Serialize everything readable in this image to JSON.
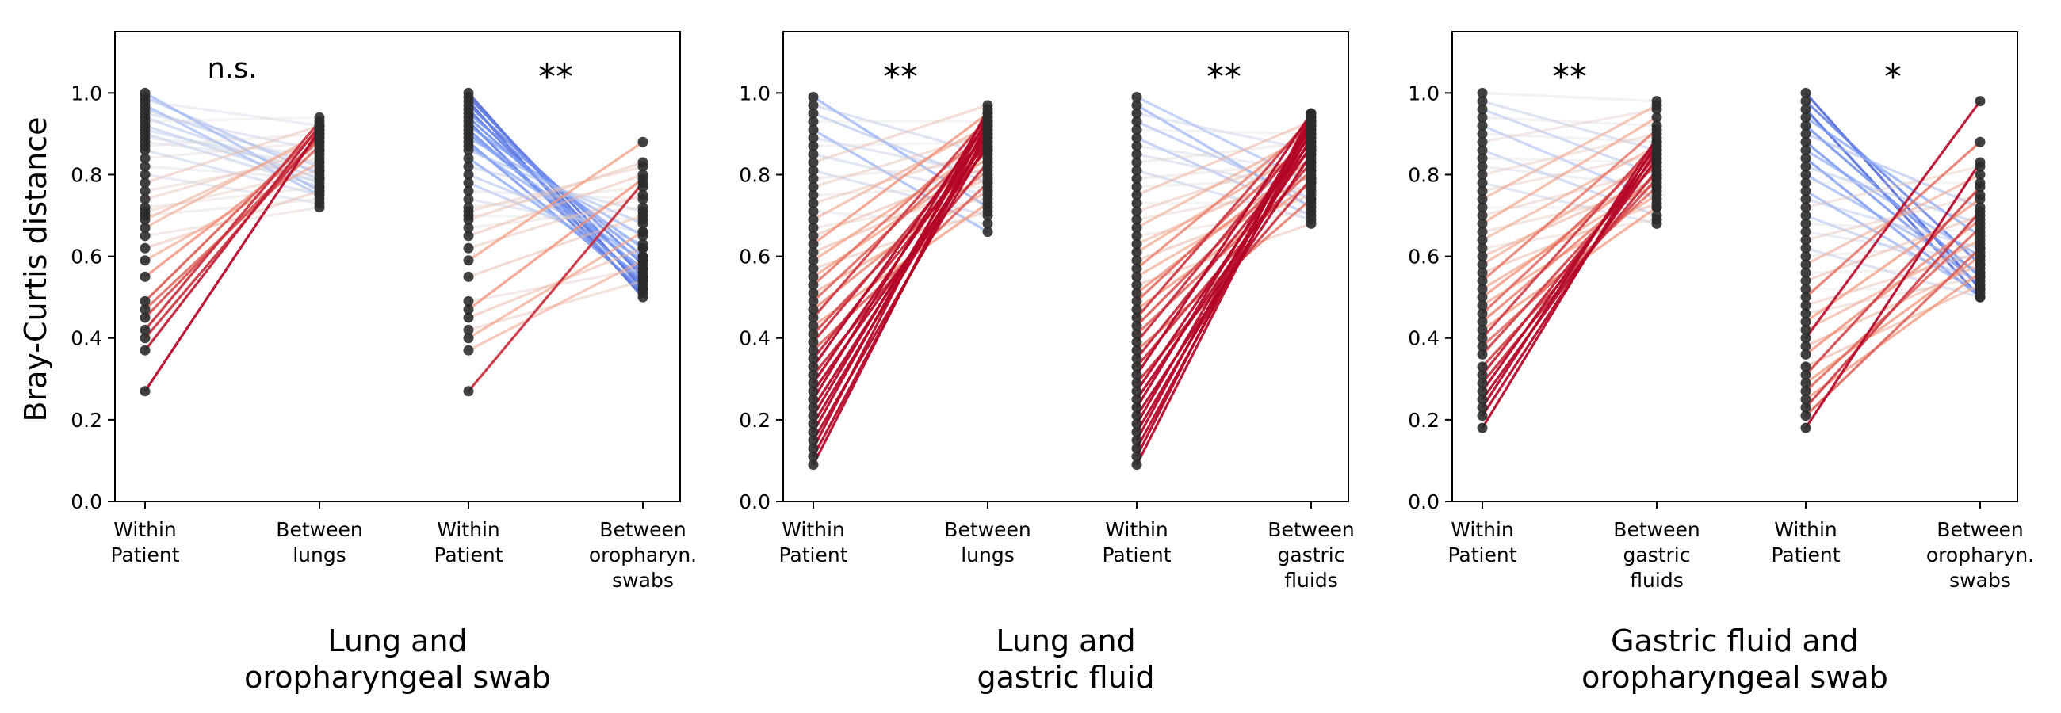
{
  "figure": {
    "ylabel": "Bray-Curtis distance"
  },
  "chart_data": [
    {
      "type": "line",
      "panel_label": "Lung and oropharyngeal swab",
      "title_lines": [
        "Lung and",
        "oropharyngeal swab"
      ],
      "ylim": [
        0.0,
        1.15
      ],
      "yticks": [
        0.0,
        0.2,
        0.4,
        0.6,
        0.8,
        1.0
      ],
      "ytick_labels": [
        "0.0",
        "0.2",
        "0.4",
        "0.6",
        "0.8",
        "1.0"
      ],
      "grid": false,
      "categories": [
        {
          "lines": [
            "Within",
            "Patient"
          ]
        },
        {
          "lines": [
            "Between",
            "lungs"
          ]
        },
        {
          "lines": [
            "Within",
            "Patient"
          ]
        },
        {
          "lines": [
            "Between",
            "oropharyn.",
            "swabs"
          ]
        }
      ],
      "comparisons": [
        {
          "significance": "n.s.",
          "within": [
            1.0,
            0.99,
            0.98,
            0.97,
            0.96,
            0.95,
            0.94,
            0.93,
            0.92,
            0.91,
            0.9,
            0.89,
            0.88,
            0.87,
            0.86,
            0.84,
            0.82,
            0.8,
            0.78,
            0.76,
            0.74,
            0.72,
            0.71,
            0.7,
            0.69,
            0.67,
            0.65,
            0.62,
            0.59,
            0.55,
            0.49,
            0.47,
            0.45,
            0.42,
            0.4,
            0.37,
            0.27
          ],
          "between": [
            0.76,
            0.8,
            0.92,
            0.75,
            0.82,
            0.86,
            0.79,
            0.94,
            0.78,
            0.81,
            0.77,
            0.85,
            0.83,
            0.9,
            0.75,
            0.88,
            0.79,
            0.73,
            0.92,
            0.84,
            0.86,
            0.77,
            0.81,
            0.74,
            0.89,
            0.9,
            0.72,
            0.76,
            0.83,
            0.88,
            0.91,
            0.87,
            0.89,
            0.93,
            0.9,
            0.92,
            0.91
          ]
        },
        {
          "significance": "**",
          "within": [
            1.0,
            0.99,
            0.98,
            0.97,
            0.96,
            0.95,
            0.94,
            0.93,
            0.92,
            0.91,
            0.9,
            0.89,
            0.88,
            0.87,
            0.86,
            0.84,
            0.82,
            0.8,
            0.78,
            0.76,
            0.74,
            0.72,
            0.71,
            0.7,
            0.69,
            0.67,
            0.65,
            0.62,
            0.59,
            0.55,
            0.49,
            0.47,
            0.45,
            0.42,
            0.4,
            0.37,
            0.27
          ],
          "between": [
            0.52,
            0.55,
            0.5,
            0.58,
            0.53,
            0.6,
            0.56,
            0.51,
            0.62,
            0.54,
            0.57,
            0.65,
            0.52,
            0.59,
            0.68,
            0.55,
            0.71,
            0.63,
            0.6,
            0.74,
            0.66,
            0.77,
            0.82,
            0.69,
            0.83,
            0.72,
            0.8,
            0.75,
            0.88,
            0.7,
            0.57,
            0.79,
            0.62,
            0.54,
            0.66,
            0.59,
            0.78
          ]
        }
      ]
    },
    {
      "type": "line",
      "panel_label": "Lung and gastric fluid",
      "title_lines": [
        "Lung and",
        "gastric fluid"
      ],
      "ylim": [
        0.0,
        1.15
      ],
      "yticks": [
        0.0,
        0.2,
        0.4,
        0.6,
        0.8,
        1.0
      ],
      "ytick_labels": [
        "0.0",
        "0.2",
        "0.4",
        "0.6",
        "0.8",
        "1.0"
      ],
      "grid": false,
      "categories": [
        {
          "lines": [
            "Within",
            "Patient"
          ]
        },
        {
          "lines": [
            "Between",
            "lungs"
          ]
        },
        {
          "lines": [
            "Within",
            "Patient"
          ]
        },
        {
          "lines": [
            "Between",
            "gastric",
            "fluids"
          ]
        }
      ],
      "comparisons": [
        {
          "significance": "**",
          "within": [
            0.99,
            0.97,
            0.95,
            0.93,
            0.91,
            0.89,
            0.87,
            0.85,
            0.83,
            0.81,
            0.79,
            0.77,
            0.75,
            0.73,
            0.71,
            0.69,
            0.67,
            0.65,
            0.63,
            0.61,
            0.59,
            0.57,
            0.55,
            0.53,
            0.51,
            0.49,
            0.47,
            0.45,
            0.43,
            0.41,
            0.39,
            0.37,
            0.35,
            0.33,
            0.31,
            0.29,
            0.27,
            0.25,
            0.23,
            0.21,
            0.19,
            0.17,
            0.15,
            0.13,
            0.11,
            0.09
          ],
          "between": [
            0.72,
            0.85,
            0.78,
            0.93,
            0.66,
            0.8,
            0.88,
            0.75,
            0.97,
            0.7,
            0.83,
            0.9,
            0.77,
            0.86,
            0.68,
            0.92,
            0.74,
            0.82,
            0.95,
            0.79,
            0.87,
            0.71,
            0.84,
            0.91,
            0.76,
            0.89,
            0.81,
            0.94,
            0.73,
            0.86,
            0.9,
            0.78,
            0.88,
            0.93,
            0.83,
            0.91,
            0.87,
            0.95,
            0.89,
            0.92,
            0.9,
            0.94,
            0.88,
            0.96,
            0.91,
            0.93
          ]
        },
        {
          "significance": "**",
          "within": [
            0.99,
            0.97,
            0.95,
            0.93,
            0.91,
            0.89,
            0.87,
            0.85,
            0.83,
            0.81,
            0.79,
            0.77,
            0.75,
            0.73,
            0.71,
            0.69,
            0.67,
            0.65,
            0.63,
            0.61,
            0.59,
            0.57,
            0.55,
            0.53,
            0.51,
            0.49,
            0.47,
            0.45,
            0.43,
            0.41,
            0.39,
            0.37,
            0.35,
            0.33,
            0.31,
            0.29,
            0.27,
            0.25,
            0.23,
            0.21,
            0.19,
            0.17,
            0.15,
            0.13,
            0.11,
            0.09
          ],
          "between": [
            0.78,
            0.72,
            0.86,
            0.74,
            0.9,
            0.7,
            0.81,
            0.76,
            0.88,
            0.69,
            0.83,
            0.79,
            0.93,
            0.73,
            0.85,
            0.77,
            0.9,
            0.71,
            0.82,
            0.87,
            0.75,
            0.92,
            0.8,
            0.68,
            0.84,
            0.89,
            0.78,
            0.94,
            0.86,
            0.81,
            0.91,
            0.74,
            0.88,
            0.83,
            0.95,
            0.79,
            0.9,
            0.87,
            0.93,
            0.85,
            0.92,
            0.89,
            0.94,
            0.91,
            0.95,
            0.93
          ]
        }
      ]
    },
    {
      "type": "line",
      "panel_label": "Gastric fluid and oropharyngeal swab",
      "title_lines": [
        "Gastric fluid and",
        "oropharyngeal swab"
      ],
      "ylim": [
        0.0,
        1.15
      ],
      "yticks": [
        0.0,
        0.2,
        0.4,
        0.6,
        0.8,
        1.0
      ],
      "ytick_labels": [
        "0.0",
        "0.2",
        "0.4",
        "0.6",
        "0.8",
        "1.0"
      ],
      "grid": false,
      "categories": [
        {
          "lines": [
            "Within",
            "Patient"
          ]
        },
        {
          "lines": [
            "Between",
            "gastric",
            "fluids"
          ]
        },
        {
          "lines": [
            "Within",
            "Patient"
          ]
        },
        {
          "lines": [
            "Between",
            "oropharyn.",
            "swabs"
          ]
        }
      ],
      "comparisons": [
        {
          "significance": "**",
          "within": [
            1.0,
            0.98,
            0.96,
            0.94,
            0.92,
            0.9,
            0.88,
            0.86,
            0.84,
            0.82,
            0.8,
            0.78,
            0.76,
            0.74,
            0.72,
            0.7,
            0.68,
            0.66,
            0.64,
            0.62,
            0.6,
            0.58,
            0.56,
            0.54,
            0.52,
            0.5,
            0.48,
            0.46,
            0.44,
            0.42,
            0.4,
            0.38,
            0.36,
            0.33,
            0.31,
            0.29,
            0.27,
            0.25,
            0.23,
            0.21,
            0.18
          ],
          "between": [
            0.98,
            0.86,
            0.8,
            0.92,
            0.74,
            0.88,
            0.96,
            0.7,
            0.83,
            0.77,
            0.9,
            0.68,
            0.85,
            0.97,
            0.72,
            0.81,
            0.94,
            0.76,
            0.87,
            0.69,
            0.79,
            0.84,
            0.73,
            0.91,
            0.78,
            0.82,
            0.75,
            0.86,
            0.8,
            0.72,
            0.88,
            0.77,
            0.83,
            0.79,
            0.85,
            0.81,
            0.87,
            0.84,
            0.89,
            0.86,
            0.88
          ]
        },
        {
          "significance": "*",
          "within": [
            1.0,
            0.98,
            0.96,
            0.94,
            0.92,
            0.9,
            0.88,
            0.86,
            0.84,
            0.82,
            0.8,
            0.78,
            0.76,
            0.74,
            0.72,
            0.7,
            0.68,
            0.66,
            0.64,
            0.62,
            0.6,
            0.58,
            0.56,
            0.54,
            0.52,
            0.5,
            0.48,
            0.46,
            0.44,
            0.42,
            0.4,
            0.38,
            0.36,
            0.33,
            0.31,
            0.29,
            0.27,
            0.25,
            0.23,
            0.21,
            0.18
          ],
          "between": [
            0.52,
            0.58,
            0.5,
            0.65,
            0.55,
            0.72,
            0.53,
            0.6,
            0.5,
            0.68,
            0.56,
            0.78,
            0.51,
            0.62,
            0.82,
            0.54,
            0.66,
            0.59,
            0.75,
            0.5,
            0.63,
            0.8,
            0.57,
            0.7,
            0.52,
            0.88,
            0.61,
            0.55,
            0.74,
            0.64,
            0.98,
            0.58,
            0.69,
            0.53,
            0.77,
            0.6,
            0.67,
            0.56,
            0.71,
            0.62,
            0.83
          ]
        }
      ]
    }
  ]
}
